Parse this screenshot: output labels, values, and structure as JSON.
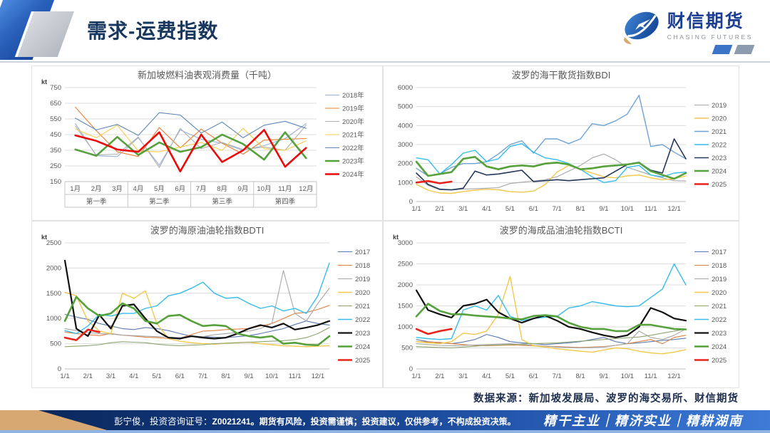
{
  "header": {
    "title": "需求-运费指数",
    "logo": {
      "name": "财信期货",
      "subtitle": "CHASING FUTURES"
    }
  },
  "source_note": "数据来源：新加坡发展局、波罗的海交易所、财信期货",
  "footer": {
    "disclaimer_prefix": "彭宁俊，投资咨询证号：",
    "disclaimer_main": "Z0021241。期货有风险，投资需谨慎；投资建议，仅供参考，不构成投资决策。",
    "slogan": "精干主业｜精济实业｜精耕湖南"
  },
  "colors": {
    "title_navy": "#17375E",
    "logo_blue": "#1C3F94",
    "footer_gradient": [
      "#0A2556",
      "#3E7BD6"
    ],
    "gridline": "#DCDCDC"
  },
  "chart_data": [
    {
      "type": "line",
      "title": "新加坡燃料油表观消费量（千吨）",
      "unit": "kt",
      "ylim": [
        150,
        750
      ],
      "yticks": [
        750,
        650,
        550,
        450,
        350,
        250,
        150
      ],
      "grid": true,
      "legend_position": "right",
      "categories": [
        "1月",
        "2月",
        "3月",
        "4月",
        "5月",
        "6月",
        "7月",
        "8月",
        "9月",
        "10月",
        "11月",
        "12月"
      ],
      "quarters": [
        "第一季",
        "第二季",
        "第三季",
        "第四季"
      ],
      "series": [
        {
          "name": "2018年",
          "color": "#9BB0D6",
          "width": 1.1,
          "values": [
            520,
            315,
            310,
            430,
            255,
            480,
            420,
            395,
            350,
            380,
            425,
            520
          ]
        },
        {
          "name": "2019年",
          "color": "#ED7D31",
          "width": 1.1,
          "values": [
            625,
            475,
            340,
            310,
            495,
            365,
            485,
            395,
            325,
            415,
            420,
            425
          ]
        },
        {
          "name": "2020年",
          "color": "#B0B0B0",
          "width": 1.1,
          "values": [
            505,
            320,
            325,
            435,
            240,
            490,
            360,
            400,
            355,
            370,
            350,
            510
          ]
        },
        {
          "name": "2021年",
          "color": "#F6CE4C",
          "width": 1.1,
          "values": [
            485,
            430,
            510,
            345,
            340,
            370,
            400,
            350,
            490,
            360,
            350,
            410
          ]
        },
        {
          "name": "2022年",
          "color": "#5E87B8",
          "width": 1.1,
          "values": [
            555,
            480,
            515,
            445,
            590,
            575,
            460,
            530,
            430,
            510,
            535,
            490
          ]
        },
        {
          "name": "2023年",
          "color": "#56A13C",
          "width": 2.6,
          "values": [
            355,
            315,
            435,
            320,
            400,
            340,
            370,
            450,
            390,
            290,
            465,
            300
          ]
        },
        {
          "name": "2024年",
          "color": "#EA0A0A",
          "width": 2.6,
          "values": [
            445,
            410,
            355,
            340,
            465,
            215,
            450,
            275,
            350,
            480,
            245,
            365
          ]
        }
      ]
    },
    {
      "type": "line",
      "title": "波罗的海干散货指数BDI",
      "unit": "",
      "ylim": [
        0,
        6000
      ],
      "yticks": [
        6000,
        5000,
        4000,
        3000,
        2000,
        1000,
        0
      ],
      "grid": true,
      "legend_position": "right",
      "categories": [
        "1/1",
        "2/1",
        "3/1",
        "4/1",
        "5/1",
        "6/1",
        "7/1",
        "8/1",
        "9/1",
        "10/1",
        "11/1",
        "12/1"
      ],
      "x_count": 24,
      "series": [
        {
          "name": "2019",
          "color": "#A6A6A6",
          "width": 1.1,
          "values": [
            1300,
            850,
            620,
            600,
            660,
            680,
            700,
            730,
            950,
            1020,
            1080,
            1150,
            1300,
            1600,
            1900,
            2300,
            2500,
            2200,
            1800,
            1600,
            1400,
            1250,
            1100,
            1080
          ]
        },
        {
          "name": "2020",
          "color": "#F2C84B",
          "width": 1.4,
          "values": [
            900,
            600,
            450,
            430,
            530,
            600,
            650,
            620,
            520,
            490,
            550,
            900,
            1550,
            1900,
            1700,
            1500,
            1300,
            1250,
            1350,
            1400,
            1250,
            1150,
            1200,
            1350
          ]
        },
        {
          "name": "2021",
          "color": "#6FA3D4",
          "width": 1.4,
          "values": [
            1750,
            1350,
            1450,
            1800,
            2000,
            2000,
            2100,
            2500,
            3000,
            3200,
            2550,
            3300,
            3300,
            3050,
            3300,
            4100,
            4000,
            4250,
            4600,
            5600,
            2900,
            3000,
            2600,
            2250
          ]
        },
        {
          "name": "2022",
          "color": "#36BCEE",
          "width": 1.4,
          "values": [
            2300,
            2200,
            1450,
            1950,
            2550,
            2700,
            2100,
            2250,
            2900,
            3050,
            2600,
            2300,
            2200,
            2000,
            1700,
            1300,
            1000,
            1100,
            1800,
            1900,
            1400,
            1300,
            1500,
            1550
          ]
        },
        {
          "name": "2023",
          "color": "#24385B",
          "width": 1.6,
          "values": [
            1500,
            900,
            650,
            620,
            700,
            1600,
            1400,
            1450,
            1550,
            1650,
            1050,
            1100,
            1150,
            1100,
            1150,
            1200,
            1250,
            1600,
            1950,
            2050,
            1650,
            1500,
            3300,
            2250
          ]
        },
        {
          "name": "2024",
          "color": "#56A13C",
          "width": 2.6,
          "values": [
            2100,
            1350,
            1450,
            1550,
            2250,
            2350,
            1850,
            1700,
            1850,
            1900,
            1850,
            2000,
            2050,
            1950,
            1700,
            1750,
            1850,
            1900,
            1950,
            2050,
            1600,
            1400,
            1200,
            1500
          ]
        },
        {
          "name": "2025",
          "color": "#E8231A",
          "width": 2.6,
          "values": [
            1000,
            1080,
            960,
            1050
          ]
        }
      ]
    },
    {
      "type": "line",
      "title": "波罗的海原油油轮指数BDTI",
      "unit": "kt",
      "ylim": [
        0,
        2500
      ],
      "yticks": [
        2500,
        2000,
        1500,
        1000,
        500,
        0
      ],
      "grid": true,
      "legend_position": "right",
      "categories": [
        "1/1",
        "2/1",
        "3/1",
        "4/1",
        "5/1",
        "6/1",
        "7/1",
        "8/1",
        "9/1",
        "10/1",
        "11/1",
        "12/1"
      ],
      "x_count": 24,
      "series": [
        {
          "name": "2017",
          "color": "#5C7BB0",
          "width": 1.1,
          "values": [
            1080,
            1030,
            980,
            900,
            850,
            800,
            780,
            820,
            800,
            760,
            700,
            650,
            640,
            630,
            620,
            640,
            660,
            700,
            750,
            800,
            880,
            950,
            900,
            870
          ]
        },
        {
          "name": "2018",
          "color": "#DE8344",
          "width": 1.1,
          "values": [
            730,
            700,
            680,
            660,
            700,
            670,
            650,
            630,
            620,
            600,
            610,
            680,
            750,
            760,
            780,
            790,
            800,
            850,
            900,
            1000,
            1100,
            1120,
            1180,
            1260
          ]
        },
        {
          "name": "2019",
          "color": "#A6A6A6",
          "width": 1.1,
          "values": [
            800,
            760,
            720,
            700,
            690,
            670,
            660,
            650,
            640,
            630,
            620,
            640,
            640,
            680,
            700,
            720,
            750,
            800,
            900,
            1950,
            1100,
            950,
            1300,
            1600
          ]
        },
        {
          "name": "2020",
          "color": "#F2C84B",
          "width": 1.4,
          "values": [
            1520,
            1450,
            950,
            750,
            700,
            1500,
            1400,
            1550,
            900,
            600,
            550,
            520,
            500,
            490,
            510,
            520,
            530,
            500,
            480,
            460,
            450,
            440,
            450,
            460
          ]
        },
        {
          "name": "2021",
          "color": "#8FA471",
          "width": 1.1,
          "values": [
            440,
            450,
            460,
            480,
            520,
            540,
            530,
            520,
            490,
            470,
            460,
            470,
            480,
            500,
            510,
            520,
            530,
            540,
            550,
            560,
            580,
            620,
            700,
            820
          ]
        },
        {
          "name": "2022",
          "color": "#36BCEE",
          "width": 1.4,
          "values": [
            760,
            700,
            850,
            1080,
            1050,
            1100,
            1100,
            1200,
            1250,
            1450,
            1500,
            1600,
            1720,
            1500,
            1400,
            1420,
            1300,
            1200,
            1250,
            1150,
            1200,
            1100,
            1450,
            2100
          ]
        },
        {
          "name": "2023",
          "color": "#111111",
          "width": 2.2,
          "values": [
            2150,
            800,
            650,
            1070,
            800,
            1250,
            1280,
            1000,
            750,
            620,
            600,
            650,
            620,
            600,
            620,
            700,
            800,
            870,
            820,
            900,
            780,
            820,
            870,
            950
          ]
        },
        {
          "name": "2024",
          "color": "#56A13C",
          "width": 2.6,
          "values": [
            950,
            1430,
            1200,
            1050,
            1100,
            1300,
            1200,
            950,
            900,
            1050,
            1070,
            950,
            850,
            870,
            850,
            700,
            650,
            620,
            650,
            500,
            520,
            480,
            470,
            650
          ]
        },
        {
          "name": "2025",
          "color": "#E8231A",
          "width": 2.6,
          "values": [
            620,
            570,
            780,
            730
          ]
        }
      ]
    },
    {
      "type": "line",
      "title": "波罗的海成品油油轮指数BCTI",
      "unit": "kt",
      "ylim": [
        0,
        3000
      ],
      "yticks": [
        3000,
        2500,
        2000,
        1500,
        1000,
        500,
        0
      ],
      "grid": true,
      "legend_position": "right",
      "categories": [
        "1/1",
        "2/1",
        "3/1",
        "4/1",
        "5/1",
        "6/1",
        "7/1",
        "8/1",
        "9/1",
        "10/1",
        "11/1",
        "12/1"
      ],
      "x_count": 24,
      "series": [
        {
          "name": "2017",
          "color": "#5C7BB0",
          "width": 1.1,
          "values": [
            700,
            650,
            620,
            600,
            640,
            700,
            820,
            750,
            650,
            620,
            600,
            580,
            600,
            620,
            650,
            700,
            750,
            650,
            600,
            620,
            650,
            680,
            700,
            730
          ]
        },
        {
          "name": "2018",
          "color": "#DE8344",
          "width": 1.1,
          "values": [
            650,
            640,
            630,
            600,
            580,
            560,
            550,
            560,
            570,
            560,
            550,
            540,
            530,
            520,
            510,
            520,
            530,
            560,
            600,
            650,
            700,
            600,
            750,
            800
          ]
        },
        {
          "name": "2019",
          "color": "#A6A6A6",
          "width": 1.1,
          "values": [
            600,
            580,
            560,
            550,
            560,
            570,
            580,
            590,
            600,
            580,
            560,
            540,
            520,
            510,
            500,
            510,
            520,
            560,
            600,
            900,
            750,
            700,
            800,
            950
          ]
        },
        {
          "name": "2020",
          "color": "#F2C84B",
          "width": 1.4,
          "values": [
            650,
            620,
            600,
            650,
            850,
            820,
            900,
            1300,
            2200,
            700,
            550,
            520,
            480,
            450,
            420,
            400,
            450,
            500,
            480,
            420,
            380,
            360,
            400,
            460
          ]
        },
        {
          "name": "2021",
          "color": "#8FA471",
          "width": 1.1,
          "values": [
            530,
            520,
            510,
            500,
            520,
            540,
            560,
            570,
            580,
            590,
            600,
            610,
            620,
            640,
            660,
            680,
            700,
            720,
            740,
            760,
            800,
            850,
            900,
            950
          ]
        },
        {
          "name": "2022",
          "color": "#36BCEE",
          "width": 1.4,
          "values": [
            750,
            720,
            700,
            720,
            1400,
            1500,
            1400,
            1750,
            1250,
            1150,
            1200,
            1230,
            1250,
            1450,
            1500,
            1600,
            1550,
            1500,
            1480,
            1500,
            1700,
            1900,
            2500,
            2000
          ]
        },
        {
          "name": "2023",
          "color": "#111111",
          "width": 2.2,
          "values": [
            1870,
            1400,
            1300,
            1220,
            1500,
            1550,
            1650,
            1350,
            1200,
            1100,
            1200,
            1270,
            1150,
            1000,
            950,
            870,
            800,
            750,
            800,
            1000,
            1450,
            1350,
            1200,
            1150
          ]
        },
        {
          "name": "2024",
          "color": "#56A13C",
          "width": 2.6,
          "values": [
            1250,
            1550,
            1380,
            1300,
            1300,
            1270,
            1250,
            1230,
            1200,
            1180,
            1260,
            1280,
            1250,
            1100,
            1000,
            950,
            950,
            900,
            900,
            1050,
            1050,
            1000,
            950,
            940
          ]
        },
        {
          "name": "2025",
          "color": "#E8231A",
          "width": 2.6,
          "values": [
            950,
            830,
            900,
            950
          ]
        }
      ]
    }
  ]
}
